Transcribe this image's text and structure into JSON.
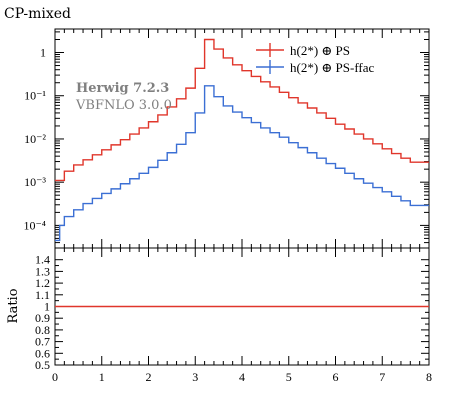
{
  "chart_data": {
    "type": "histogram",
    "title": "CP-mixed",
    "annotations": {
      "generator": "Herwig 7.2.3",
      "version": "VBFNLO 3.0.0"
    },
    "x_edges": [
      0.0,
      0.1,
      0.2,
      0.4,
      0.6,
      0.8,
      1.0,
      1.2,
      1.4,
      1.6,
      1.8,
      2.0,
      2.2,
      2.4,
      2.6,
      2.8,
      3.0,
      3.2,
      3.4,
      3.6,
      3.8,
      4.0,
      4.2,
      4.4,
      4.6,
      4.8,
      5.0,
      5.2,
      5.4,
      5.6,
      5.8,
      6.0,
      6.2,
      6.4,
      6.6,
      6.8,
      7.0,
      7.2,
      7.4,
      7.6,
      7.8,
      8.0
    ],
    "xlim": [
      0,
      8
    ],
    "xticks": [
      "0",
      "1",
      "2",
      "3",
      "4",
      "5",
      "6",
      "7",
      "8"
    ],
    "main": {
      "yscale": "log",
      "ylim": [
        3e-05,
        3.5
      ],
      "yticks": [
        "1",
        "10⁻¹",
        "10⁻²",
        "10⁻³",
        "10⁻⁴"
      ],
      "series": [
        {
          "name": "h(2*) ⊕ PS",
          "color": "#e0362b",
          "values": [
            0.0011,
            0.0011,
            0.0018,
            0.0025,
            0.0033,
            0.0043,
            0.0056,
            0.0073,
            0.0096,
            0.013,
            0.018,
            0.025,
            0.036,
            0.055,
            0.085,
            0.15,
            0.43,
            2.0,
            1.2,
            0.75,
            0.52,
            0.38,
            0.28,
            0.21,
            0.16,
            0.12,
            0.09,
            0.068,
            0.052,
            0.04,
            0.03,
            0.022,
            0.017,
            0.013,
            0.01,
            0.0077,
            0.0059,
            0.0046,
            0.0036,
            0.0029,
            0.0029
          ]
        },
        {
          "name": "h(2*) ⊕ PS-ffac",
          "color": "#3b6fd4",
          "values": [
            4.5e-05,
            0.0001,
            0.00016,
            0.00023,
            0.00032,
            0.00042,
            0.00055,
            0.0007,
            0.00092,
            0.0012,
            0.0016,
            0.0022,
            0.0032,
            0.0048,
            0.0075,
            0.014,
            0.04,
            0.17,
            0.095,
            0.058,
            0.042,
            0.031,
            0.024,
            0.018,
            0.014,
            0.011,
            0.0082,
            0.0063,
            0.0048,
            0.0036,
            0.0027,
            0.0021,
            0.0016,
            0.0012,
            0.00095,
            0.00075,
            0.0006,
            0.00047,
            0.00037,
            0.00029,
            0.00029
          ]
        }
      ]
    },
    "ratio": {
      "ylabel": "Ratio",
      "ylim": [
        0.5,
        1.5
      ],
      "yticks": [
        "1.4",
        "1.3",
        "1.2",
        "1.1",
        "1",
        "0.9",
        "0.8",
        "0.7",
        "0.6",
        "0.5"
      ],
      "series": [
        {
          "name": "h(2*) ⊕ PS",
          "color": "#e0362b",
          "value": 1.0
        }
      ]
    },
    "legend": {
      "position": "top-right"
    }
  }
}
